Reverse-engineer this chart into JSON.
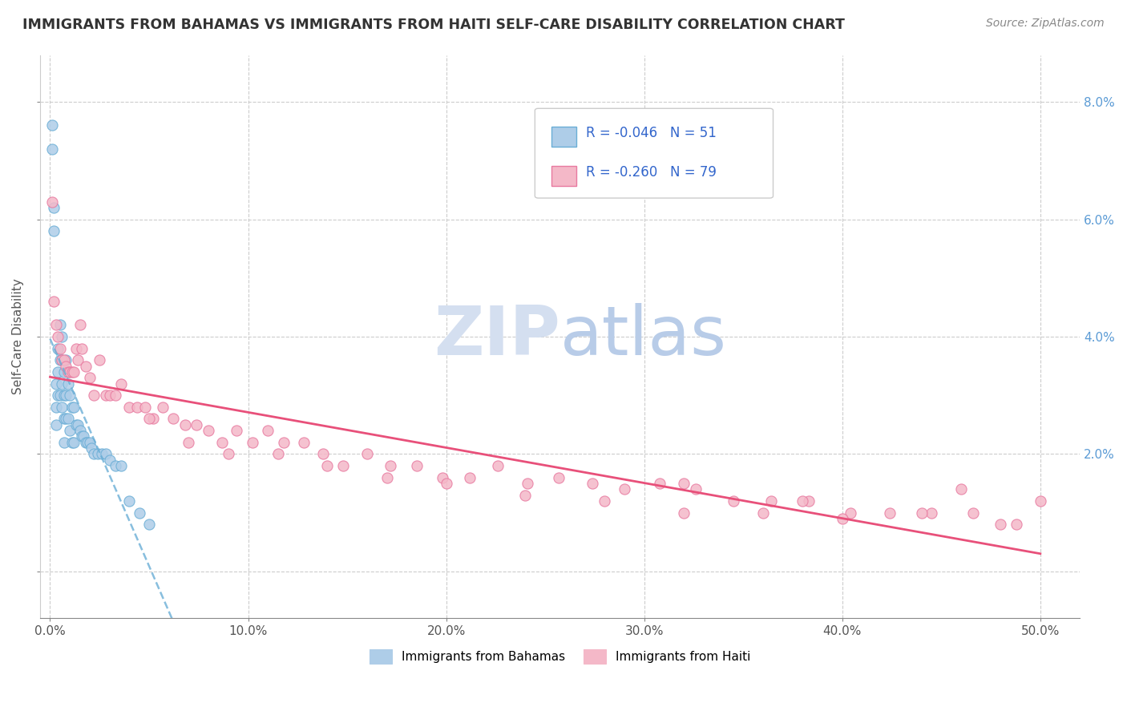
{
  "title": "IMMIGRANTS FROM BAHAMAS VS IMMIGRANTS FROM HAITI SELF-CARE DISABILITY CORRELATION CHART",
  "source": "Source: ZipAtlas.com",
  "ylabel": "Self-Care Disability",
  "xlim": [
    -0.005,
    0.52
  ],
  "ylim": [
    -0.008,
    0.088
  ],
  "legend_r1": "R = -0.046",
  "legend_n1": "N = 51",
  "legend_r2": "R = -0.260",
  "legend_n2": "N = 79",
  "bahamas_color": "#aecde8",
  "haiti_color": "#f4b8c8",
  "bahamas_edge": "#6aaed6",
  "haiti_edge": "#e87aa0",
  "regression_bahamas_color": "#6aaed6",
  "regression_haiti_color": "#e8507a",
  "grid_color": "#cccccc",
  "watermark_color": "#d4dff0",
  "background_color": "#ffffff",
  "bahamas_x": [
    0.001,
    0.001,
    0.002,
    0.002,
    0.003,
    0.003,
    0.003,
    0.004,
    0.004,
    0.004,
    0.005,
    0.005,
    0.005,
    0.006,
    0.006,
    0.006,
    0.006,
    0.007,
    0.007,
    0.007,
    0.007,
    0.008,
    0.008,
    0.008,
    0.009,
    0.009,
    0.01,
    0.01,
    0.011,
    0.011,
    0.012,
    0.012,
    0.013,
    0.014,
    0.015,
    0.016,
    0.017,
    0.018,
    0.019,
    0.02,
    0.021,
    0.022,
    0.024,
    0.026,
    0.028,
    0.03,
    0.033,
    0.036,
    0.04,
    0.045,
    0.05
  ],
  "bahamas_y": [
    0.076,
    0.072,
    0.058,
    0.062,
    0.032,
    0.028,
    0.025,
    0.038,
    0.034,
    0.03,
    0.042,
    0.036,
    0.03,
    0.04,
    0.036,
    0.032,
    0.028,
    0.034,
    0.03,
    0.026,
    0.022,
    0.036,
    0.03,
    0.026,
    0.032,
    0.026,
    0.03,
    0.024,
    0.028,
    0.022,
    0.028,
    0.022,
    0.025,
    0.025,
    0.024,
    0.023,
    0.023,
    0.022,
    0.022,
    0.022,
    0.021,
    0.02,
    0.02,
    0.02,
    0.02,
    0.019,
    0.018,
    0.018,
    0.012,
    0.01,
    0.008
  ],
  "haiti_x": [
    0.001,
    0.002,
    0.003,
    0.004,
    0.005,
    0.006,
    0.007,
    0.008,
    0.009,
    0.01,
    0.011,
    0.012,
    0.013,
    0.014,
    0.015,
    0.016,
    0.018,
    0.02,
    0.022,
    0.025,
    0.028,
    0.03,
    0.033,
    0.036,
    0.04,
    0.044,
    0.048,
    0.052,
    0.057,
    0.062,
    0.068,
    0.074,
    0.08,
    0.087,
    0.094,
    0.102,
    0.11,
    0.118,
    0.128,
    0.138,
    0.148,
    0.16,
    0.172,
    0.185,
    0.198,
    0.212,
    0.226,
    0.241,
    0.257,
    0.274,
    0.29,
    0.308,
    0.326,
    0.345,
    0.364,
    0.383,
    0.404,
    0.424,
    0.445,
    0.466,
    0.488,
    0.05,
    0.07,
    0.09,
    0.115,
    0.14,
    0.17,
    0.2,
    0.24,
    0.28,
    0.32,
    0.36,
    0.4,
    0.44,
    0.48,
    0.5,
    0.32,
    0.38,
    0.46
  ],
  "haiti_y": [
    0.063,
    0.046,
    0.042,
    0.04,
    0.038,
    0.036,
    0.036,
    0.035,
    0.034,
    0.034,
    0.034,
    0.034,
    0.038,
    0.036,
    0.042,
    0.038,
    0.035,
    0.033,
    0.03,
    0.036,
    0.03,
    0.03,
    0.03,
    0.032,
    0.028,
    0.028,
    0.028,
    0.026,
    0.028,
    0.026,
    0.025,
    0.025,
    0.024,
    0.022,
    0.024,
    0.022,
    0.024,
    0.022,
    0.022,
    0.02,
    0.018,
    0.02,
    0.018,
    0.018,
    0.016,
    0.016,
    0.018,
    0.015,
    0.016,
    0.015,
    0.014,
    0.015,
    0.014,
    0.012,
    0.012,
    0.012,
    0.01,
    0.01,
    0.01,
    0.01,
    0.008,
    0.026,
    0.022,
    0.02,
    0.02,
    0.018,
    0.016,
    0.015,
    0.013,
    0.012,
    0.01,
    0.01,
    0.009,
    0.01,
    0.008,
    0.012,
    0.015,
    0.012,
    0.014
  ]
}
